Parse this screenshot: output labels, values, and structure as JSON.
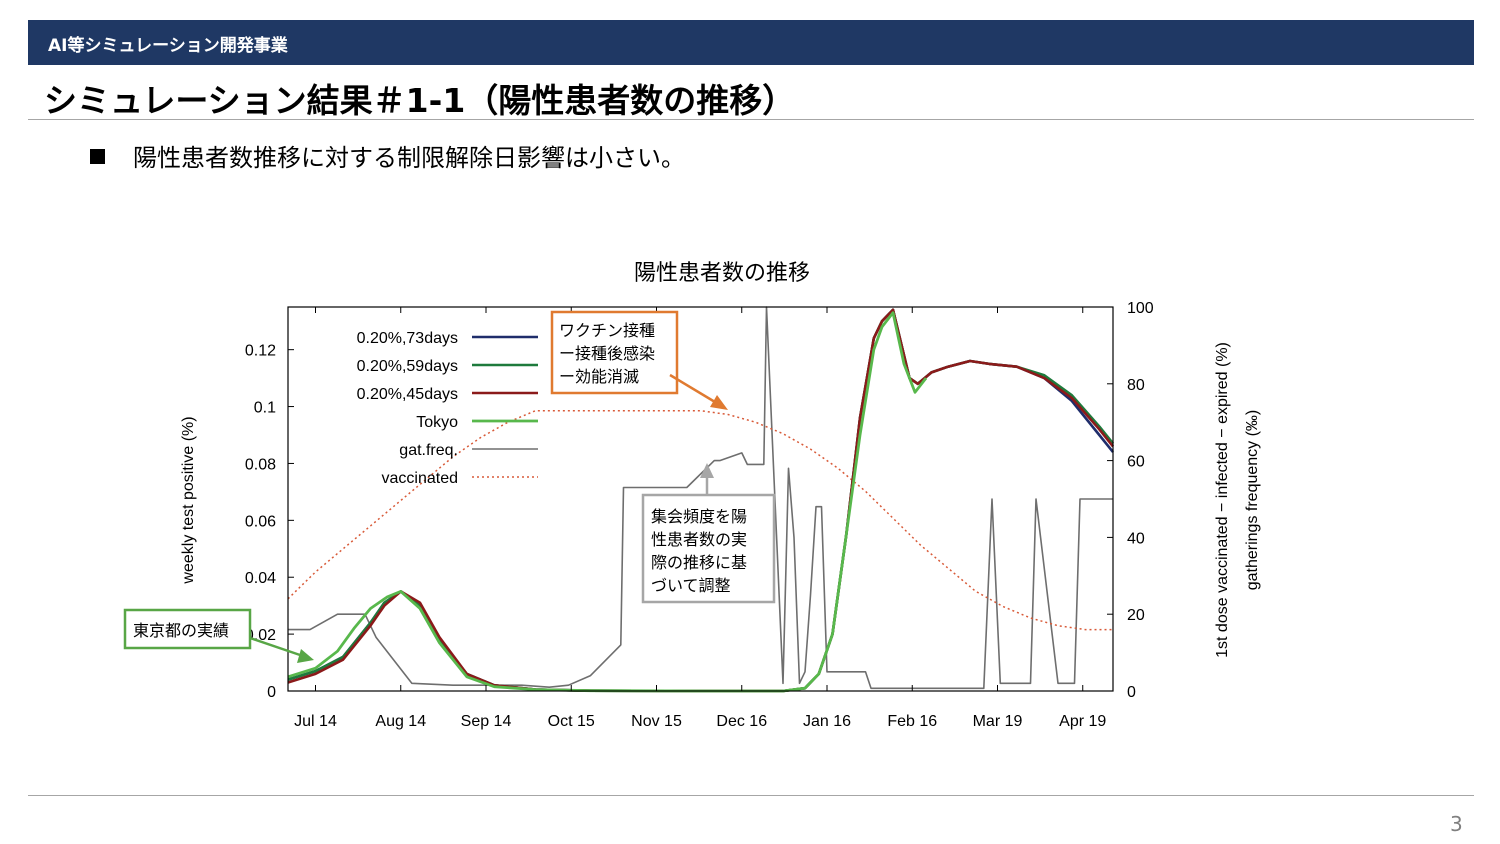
{
  "header": {
    "section_label": "AI等シミュレーション開発事業",
    "slide_title": "シミュレーション結果＃1-1（陽性患者数の推移）",
    "bullet": "陽性患者数推移に対する制限解除日影響は小さい。",
    "page_number": "3"
  },
  "annotations": {
    "vaccine_box": [
      "ワクチン接種",
      "ー接種後感染",
      "ー効能消滅"
    ],
    "gathering_box": [
      "集会頻度を陽",
      "性患者数の実",
      "際の推移に基",
      "づいて調整"
    ],
    "tokyo_box": "東京都の実績"
  },
  "colors": {
    "header_bg": "#1f3864",
    "sim_73": "#1f2d6b",
    "sim_59": "#1e7a3c",
    "sim_45": "#8b1a1a",
    "tokyo": "#58b84c",
    "gat_freq": "#6e6e6e",
    "vaccinated": "#d85a38",
    "vaccine_box_border": "#e07a30",
    "gathering_box_border": "#a6a6a6",
    "tokyo_box_border": "#58a646"
  },
  "chart_data": {
    "type": "line",
    "title": "陽性患者数の推移",
    "ylabel": "weekly test positive (%)",
    "y2label_lines": [
      "1st dose vaccinated − infected − expired (%)",
      "gatherings frequency (‰)"
    ],
    "x_ticks": [
      "Jul 14",
      "Aug 14",
      "Sep 14",
      "Oct 15",
      "Nov 15",
      "Dec 16",
      "Jan 16",
      "Feb 16",
      "Mar 19",
      "Apr 19"
    ],
    "x_tick_days": [
      0,
      31,
      62,
      93,
      124,
      155,
      186,
      217,
      248,
      279
    ],
    "xlim_days": [
      -10,
      290
    ],
    "y_ticks": [
      "0",
      "0.02",
      "0.04",
      "0.06",
      "0.08",
      "0.1",
      "0.12"
    ],
    "y_tick_values": [
      0,
      0.02,
      0.04,
      0.06,
      0.08,
      0.1,
      0.12
    ],
    "ylim": [
      0,
      0.135
    ],
    "y2_ticks": [
      "0",
      "20",
      "40",
      "60",
      "80",
      "100"
    ],
    "y2_tick_values": [
      0,
      20,
      40,
      60,
      80,
      100
    ],
    "y2lim": [
      0,
      100
    ],
    "legend": [
      "0.20%,73days",
      "0.20%,59days",
      "0.20%,45days",
      "Tokyo",
      "gat.freq.",
      "vaccinated"
    ],
    "series": [
      {
        "name": "0.20%,73days",
        "axis": "y1",
        "days": [
          -10,
          0,
          10,
          20,
          25,
          31,
          38,
          45,
          55,
          65,
          80,
          100,
          140,
          170,
          178,
          183,
          188,
          193,
          198,
          203,
          206,
          210,
          213,
          216,
          219,
          224,
          230,
          238,
          245,
          255,
          265,
          275,
          285,
          290
        ],
        "values": [
          0.004,
          0.007,
          0.012,
          0.024,
          0.031,
          0.035,
          0.03,
          0.018,
          0.006,
          0.002,
          0.0005,
          0.0001,
          0,
          0,
          0.001,
          0.006,
          0.02,
          0.055,
          0.096,
          0.124,
          0.13,
          0.134,
          0.122,
          0.11,
          0.108,
          0.112,
          0.114,
          0.116,
          0.115,
          0.114,
          0.11,
          0.102,
          0.09,
          0.084
        ]
      },
      {
        "name": "0.20%,59days",
        "axis": "y1",
        "days": [
          -10,
          0,
          10,
          20,
          25,
          31,
          38,
          45,
          55,
          65,
          80,
          100,
          140,
          170,
          178,
          183,
          188,
          193,
          198,
          203,
          206,
          210,
          213,
          216,
          219,
          224,
          230,
          238,
          245,
          255,
          265,
          275,
          285,
          290
        ],
        "values": [
          0.004,
          0.007,
          0.012,
          0.024,
          0.031,
          0.035,
          0.03,
          0.018,
          0.006,
          0.002,
          0.0005,
          0.0001,
          0,
          0,
          0.001,
          0.006,
          0.02,
          0.055,
          0.096,
          0.124,
          0.13,
          0.134,
          0.122,
          0.11,
          0.108,
          0.112,
          0.114,
          0.116,
          0.115,
          0.114,
          0.111,
          0.104,
          0.093,
          0.087
        ]
      },
      {
        "name": "0.20%,45days",
        "axis": "y1",
        "days": [
          -10,
          0,
          10,
          20,
          25,
          31,
          38,
          45,
          55,
          65,
          80,
          100,
          140,
          170,
          178,
          183,
          188,
          193,
          198,
          203,
          206,
          210,
          213,
          216,
          219,
          224,
          230,
          238,
          245,
          255,
          265,
          275,
          285,
          290
        ],
        "values": [
          0.003,
          0.006,
          0.011,
          0.023,
          0.03,
          0.035,
          0.031,
          0.019,
          0.006,
          0.002,
          0.0005,
          0.0001,
          0,
          0,
          0.001,
          0.006,
          0.02,
          0.055,
          0.096,
          0.124,
          0.13,
          0.134,
          0.122,
          0.11,
          0.108,
          0.112,
          0.114,
          0.116,
          0.115,
          0.114,
          0.11,
          0.103,
          0.092,
          0.086
        ]
      },
      {
        "name": "Tokyo",
        "axis": "y1",
        "days": [
          -10,
          0,
          8,
          14,
          20,
          26,
          31,
          38,
          45,
          55,
          65,
          80,
          100,
          140,
          170,
          178,
          183,
          188,
          193,
          198,
          203,
          206,
          210,
          214,
          218,
          222
        ],
        "values": [
          0.005,
          0.008,
          0.014,
          0.022,
          0.029,
          0.033,
          0.035,
          0.029,
          0.017,
          0.005,
          0.0015,
          0.0005,
          0.0001,
          0,
          0,
          0.001,
          0.006,
          0.02,
          0.055,
          0.09,
          0.12,
          0.128,
          0.133,
          0.115,
          0.105,
          0.11
        ]
      },
      {
        "name": "gat.freq.",
        "axis": "y2",
        "days": [
          -10,
          -2,
          8,
          18,
          22,
          35,
          50,
          75,
          85,
          92,
          100,
          111,
          112,
          135,
          145,
          147,
          155,
          157,
          163,
          164,
          170,
          172,
          174,
          176,
          178,
          180,
          182,
          184,
          186,
          188,
          190,
          192,
          194,
          196,
          198,
          200,
          202,
          204,
          206,
          215,
          216,
          243,
          246,
          249,
          255,
          260,
          262,
          270,
          276,
          278,
          286,
          290
        ],
        "values": [
          16,
          16,
          20,
          20,
          14,
          2,
          1.5,
          1.5,
          1,
          1.5,
          4,
          12,
          53,
          53,
          60,
          60,
          62,
          59,
          59,
          100,
          2,
          58,
          40,
          2,
          5,
          25,
          48,
          48,
          5,
          5,
          5,
          5,
          5,
          5,
          5,
          5,
          0.7,
          0.7,
          0.7,
          0.7,
          0.7,
          0.7,
          50,
          2,
          2,
          2,
          50,
          2,
          2,
          50,
          50,
          50
        ]
      },
      {
        "name": "vaccinated",
        "axis": "y2",
        "days": [
          -10,
          0,
          10,
          20,
          30,
          40,
          50,
          60,
          70,
          80,
          95,
          110,
          125,
          140,
          150,
          160,
          170,
          180,
          190,
          200,
          210,
          220,
          230,
          240,
          250,
          260,
          270,
          280,
          290
        ],
        "values": [
          24,
          31,
          37,
          43,
          49,
          55,
          61,
          66,
          70,
          73,
          73,
          73,
          73,
          73,
          72,
          70,
          67,
          63,
          58,
          52,
          45,
          38,
          32,
          26,
          22,
          19,
          17,
          16,
          16
        ]
      }
    ]
  }
}
